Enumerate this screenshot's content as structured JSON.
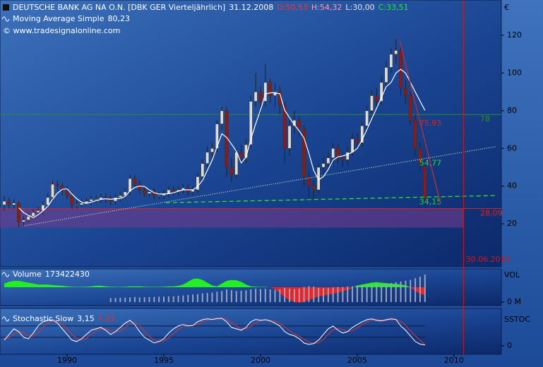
{
  "chart_data": [
    {
      "type": "candlestick",
      "title": "DEUTSCHE BANK AG NA O.N. [DBK GER  Vierteljährlich]",
      "date": "31.12.2008",
      "ohlc_labels": [
        "O:50,53",
        "H:54,32",
        "L:30,00",
        "C:33,51"
      ],
      "credit": "© www.tradesignalonline.com",
      "y_label": "€",
      "x": [
        1986.75,
        1987,
        1987.25,
        1987.5,
        1987.75,
        1988,
        1988.25,
        1988.5,
        1988.75,
        1989,
        1989.25,
        1989.5,
        1989.75,
        1990,
        1990.25,
        1990.5,
        1990.75,
        1991,
        1991.25,
        1991.5,
        1991.75,
        1992,
        1992.25,
        1992.5,
        1992.75,
        1993,
        1993.25,
        1993.5,
        1993.75,
        1994,
        1994.25,
        1994.5,
        1994.75,
        1995,
        1995.25,
        1995.5,
        1995.75,
        1996,
        1996.25,
        1996.5,
        1996.75,
        1997,
        1997.25,
        1997.5,
        1997.75,
        1998,
        1998.25,
        1998.5,
        1998.75,
        1999,
        1999.25,
        1999.5,
        1999.75,
        2000,
        2000.25,
        2000.5,
        2000.75,
        2001,
        2001.25,
        2001.5,
        2001.75,
        2002,
        2002.25,
        2002.5,
        2002.75,
        2003,
        2003.25,
        2003.5,
        2003.75,
        2004,
        2004.25,
        2004.5,
        2004.75,
        2005,
        2005.25,
        2005.5,
        2005.75,
        2006,
        2006.25,
        2006.5,
        2006.75,
        2007,
        2007.25,
        2007.5,
        2007.75,
        2008,
        2008.25,
        2008.5
      ],
      "open": [
        30,
        32,
        30,
        31,
        21,
        22,
        24,
        26,
        27,
        30,
        34,
        41,
        40,
        38,
        35,
        30,
        30,
        31,
        32,
        33,
        33,
        34,
        33,
        32,
        34,
        35,
        37,
        44,
        41,
        38,
        36,
        37,
        35,
        35,
        36,
        38,
        37,
        38,
        39,
        37,
        38,
        45,
        52,
        58,
        60,
        73,
        80,
        50,
        46,
        58,
        55,
        62,
        85,
        90,
        85,
        95,
        88,
        90,
        83,
        60,
        72,
        75,
        70,
        45,
        40,
        38,
        50,
        52,
        55,
        60,
        55,
        54,
        58,
        65,
        63,
        72,
        80,
        88,
        85,
        95,
        103,
        110,
        112,
        92,
        88,
        75,
        60,
        50.53
      ],
      "high": [
        35,
        34,
        33,
        32,
        24,
        26,
        28,
        29,
        32,
        36,
        43,
        43,
        42,
        40,
        37,
        33,
        33,
        34,
        35,
        35,
        36,
        36,
        35,
        36,
        37,
        39,
        46,
        46,
        43,
        40,
        39,
        39,
        37,
        38,
        40,
        40,
        40,
        41,
        41,
        40,
        47,
        54,
        61,
        63,
        75,
        82,
        82,
        55,
        60,
        62,
        65,
        88,
        100,
        93,
        105,
        97,
        95,
        93,
        85,
        75,
        80,
        77,
        72,
        48,
        43,
        52,
        55,
        58,
        63,
        62,
        58,
        61,
        68,
        68,
        74,
        83,
        91,
        92,
        98,
        106,
        113,
        118,
        114,
        96,
        90,
        78,
        63,
        54.32
      ],
      "low": [
        27,
        28,
        28,
        18,
        19,
        21,
        23,
        24,
        25,
        28,
        32,
        37,
        35,
        33,
        28,
        28,
        29,
        30,
        30,
        31,
        31,
        31,
        30,
        30,
        32,
        33,
        35,
        39,
        36,
        34,
        34,
        33,
        33,
        33,
        34,
        35,
        35,
        36,
        35,
        35,
        36,
        43,
        50,
        55,
        58,
        70,
        45,
        42,
        44,
        52,
        52,
        60,
        82,
        78,
        82,
        84,
        82,
        78,
        52,
        56,
        68,
        66,
        40,
        32,
        33,
        36,
        47,
        50,
        52,
        52,
        50,
        51,
        56,
        60,
        61,
        70,
        78,
        82,
        83,
        92,
        100,
        105,
        88,
        84,
        72,
        56,
        48,
        30
      ],
      "close": [
        32,
        30,
        31,
        21,
        22,
        24,
        26,
        27,
        30,
        34,
        41,
        40,
        38,
        35,
        30,
        30,
        31,
        32,
        33,
        33,
        34,
        33,
        32,
        34,
        35,
        37,
        44,
        41,
        38,
        36,
        37,
        35,
        35,
        36,
        38,
        37,
        38,
        39,
        37,
        38,
        45,
        52,
        58,
        60,
        73,
        80,
        50,
        46,
        58,
        55,
        62,
        85,
        90,
        85,
        95,
        88,
        90,
        83,
        60,
        72,
        75,
        70,
        45,
        40,
        38,
        50,
        52,
        55,
        60,
        55,
        54,
        58,
        65,
        63,
        72,
        80,
        88,
        85,
        95,
        103,
        110,
        112,
        92,
        88,
        75,
        60,
        52,
        33.51
      ],
      "up_color": "#dcdcdc",
      "down_color": "#8b1a1a",
      "series": [
        {
          "name": "Moving Average Simple",
          "value_label": "80,23",
          "color": "#ffffff",
          "values": [
            null,
            null,
            null,
            28.5,
            26,
            24.5,
            23.3,
            24.8,
            26.8,
            29.3,
            33,
            36.3,
            38.3,
            38.5,
            35.8,
            33.3,
            31.5,
            30.8,
            31.5,
            32.3,
            33,
            33.3,
            33,
            33.3,
            33.5,
            34.5,
            37.5,
            39.3,
            40,
            39.8,
            38,
            36.5,
            35.8,
            35.8,
            36,
            36.5,
            37.3,
            38,
            38,
            38,
            39.8,
            43,
            48.3,
            53.8,
            60.8,
            67.8,
            65.8,
            62.3,
            58.5,
            52.3,
            55.3,
            65,
            73,
            80.5,
            88.8,
            89.5,
            89.5,
            89,
            80.3,
            76.3,
            72.5,
            69.3,
            65.5,
            57.5,
            48.3,
            43.3,
            45,
            48.8,
            53.8,
            55.5,
            56,
            56.8,
            58,
            60,
            64.5,
            70,
            75.8,
            81.3,
            87,
            92.8,
            95,
            100,
            102,
            100,
            95,
            90,
            85,
            80.23
          ]
        }
      ],
      "xlim": [
        1986.53,
        2012.45
      ],
      "ylim": [
        -2.8,
        138
      ],
      "yticks": [
        20,
        40,
        60,
        80,
        100,
        120
      ],
      "hlines": [
        {
          "value": 78,
          "label": "78",
          "color": "#2e8b2e"
        },
        {
          "value": 28.09,
          "label": "28,09",
          "color": "#e02020"
        }
      ],
      "trendlines": [
        {
          "x": [
            1987.8,
            2012.2
          ],
          "y": [
            19,
            61
          ],
          "value": 54.77,
          "label": "54,77",
          "color": "#c8d8c8",
          "dash": "1 2",
          "label_color": "#22dd22"
        },
        {
          "x": [
            1995.1,
            2012.2
          ],
          "y": [
            31.2,
            35
          ],
          "value": 34.15,
          "label": "34,15",
          "color": "#22ee22",
          "dash": "6 4",
          "label_color": "#22dd22"
        },
        {
          "x": [
            2007.2,
            2009.3
          ],
          "y": [
            117,
            31
          ],
          "value": 75.93,
          "label": "75,93",
          "color": "#c03030",
          "dash": "none",
          "label_color": "#e02020"
        }
      ],
      "zone": {
        "y": [
          18,
          28.09
        ],
        "color": "#7a3a8a"
      },
      "vline": {
        "x": 2010.5,
        "label": "30.06.2010",
        "color": "#d01818"
      }
    },
    {
      "type": "bar",
      "y_label": "VOL",
      "x": [
        1986.75,
        1987,
        1987.25,
        1987.5,
        1987.75,
        1988,
        1988.25,
        1988.5,
        1988.75,
        1989,
        1989.25,
        1989.5,
        1989.75,
        1990,
        1990.25,
        1990.5,
        1990.75,
        1991,
        1991.25,
        1991.5,
        1991.75,
        1992,
        1992.25,
        1992.5,
        1992.75,
        1993,
        1993.25,
        1993.5,
        1993.75,
        1994,
        1994.25,
        1994.5,
        1994.75,
        1995,
        1995.25,
        1995.5,
        1995.75,
        1996,
        1996.25,
        1996.5,
        1996.75,
        1997,
        1997.25,
        1997.5,
        1997.75,
        1998,
        1998.25,
        1998.5,
        1998.75,
        1999,
        1999.25,
        1999.5,
        1999.75,
        2000,
        2000.25,
        2000.5,
        2000.75,
        2001,
        2001.25,
        2001.5,
        2001.75,
        2002,
        2002.25,
        2002.5,
        2002.75,
        2003,
        2003.25,
        2003.5,
        2003.75,
        2004,
        2004.25,
        2004.5,
        2004.75,
        2005,
        2005.25,
        2005.5,
        2005.75,
        2006,
        2006.25,
        2006.5,
        2006.75,
        2007,
        2007.25,
        2007.5,
        2007.75,
        2008,
        2008.25,
        2008.5
      ],
      "series": [
        {
          "name": "Volume",
          "color": "#9aa4bc",
          "values": [
            null,
            null,
            null,
            null,
            null,
            null,
            null,
            null,
            null,
            null,
            null,
            null,
            null,
            null,
            null,
            null,
            null,
            null,
            null,
            null,
            null,
            null,
            25000000,
            26000000,
            27000000,
            28000000,
            30000000,
            32000000,
            30000000,
            31000000,
            32000000,
            33000000,
            34000000,
            35000000,
            36000000,
            38000000,
            40000000,
            42000000,
            45000000,
            48000000,
            50000000,
            55000000,
            58000000,
            60000000,
            65000000,
            70000000,
            80000000,
            75000000,
            70000000,
            72000000,
            75000000,
            80000000,
            85000000,
            82000000,
            84000000,
            80000000,
            78000000,
            80000000,
            90000000,
            85000000,
            82000000,
            85000000,
            95000000,
            100000000,
            98000000,
            90000000,
            88000000,
            90000000,
            92000000,
            95000000,
            95000000,
            98000000,
            100000000,
            102000000,
            105000000,
            108000000,
            110000000,
            112000000,
            115000000,
            118000000,
            120000000,
            125000000,
            130000000,
            135000000,
            140000000,
            150000000,
            160000000,
            173422430
          ]
        }
      ],
      "oscillator": {
        "up_color": "#22ee22",
        "down_color": "#ee2222",
        "values": [
          20,
          30,
          35,
          35,
          30,
          25,
          20,
          15,
          15,
          15,
          12,
          10,
          8,
          5,
          3,
          2,
          2,
          3,
          5,
          8,
          8,
          5,
          3,
          2,
          2,
          3,
          5,
          5,
          5,
          3,
          2,
          2,
          2,
          3,
          5,
          5,
          8,
          15,
          30,
          45,
          48,
          40,
          25,
          10,
          5,
          20,
          35,
          40,
          38,
          30,
          15,
          5,
          3,
          2,
          2,
          0,
          -10,
          -30,
          -55,
          -70,
          -80,
          -84,
          -80,
          -70,
          -60,
          -50,
          -45,
          -40,
          -35,
          -30,
          -22,
          -15,
          -5,
          10,
          15,
          20,
          25,
          28,
          25,
          22,
          20,
          18,
          15,
          10,
          0,
          -20,
          -35,
          -44
        ]
      },
      "xlim": [
        1986.53,
        2012.45
      ],
      "ylim": [
        -22000000,
        209000000
      ],
      "y2lim": [
        -100,
        100
      ],
      "yticks": [
        {
          "value": 0,
          "label": "0 M"
        }
      ]
    },
    {
      "type": "line",
      "y_label": "SSTOC",
      "x": [
        1986.75,
        1987,
        1987.25,
        1987.5,
        1987.75,
        1988,
        1988.25,
        1988.5,
        1988.75,
        1989,
        1989.25,
        1989.5,
        1989.75,
        1990,
        1990.25,
        1990.5,
        1990.75,
        1991,
        1991.25,
        1991.5,
        1991.75,
        1992,
        1992.25,
        1992.5,
        1992.75,
        1993,
        1993.25,
        1993.5,
        1993.75,
        1994,
        1994.25,
        1994.5,
        1994.75,
        1995,
        1995.25,
        1995.5,
        1995.75,
        1996,
        1996.25,
        1996.5,
        1996.75,
        1997,
        1997.25,
        1997.5,
        1997.75,
        1998,
        1998.25,
        1998.5,
        1998.75,
        1999,
        1999.25,
        1999.5,
        1999.75,
        2000,
        2000.25,
        2000.5,
        2000.75,
        2001,
        2001.25,
        2001.5,
        2001.75,
        2002,
        2002.25,
        2002.5,
        2002.75,
        2003,
        2003.25,
        2003.5,
        2003.75,
        2004,
        2004.25,
        2004.5,
        2004.75,
        2005,
        2005.25,
        2005.5,
        2005.75,
        2006,
        2006.25,
        2006.5,
        2006.75,
        2007,
        2007.25,
        2007.5,
        2007.75,
        2008,
        2008.25,
        2008.5
      ],
      "series": [
        {
          "name": "Stochastic Slow",
          "value_label": "3,15",
          "color": "#ffffff",
          "values": [
            20,
            40,
            60,
            50,
            30,
            25,
            45,
            70,
            85,
            90,
            92,
            80,
            60,
            40,
            20,
            15,
            25,
            40,
            55,
            60,
            65,
            55,
            40,
            50,
            65,
            80,
            90,
            75,
            50,
            30,
            20,
            10,
            15,
            25,
            45,
            60,
            70,
            75,
            70,
            72,
            85,
            92,
            95,
            93,
            96,
            97,
            85,
            65,
            60,
            55,
            65,
            85,
            93,
            90,
            92,
            88,
            80,
            70,
            50,
            40,
            35,
            25,
            10,
            5,
            8,
            20,
            40,
            60,
            70,
            55,
            45,
            50,
            65,
            75,
            85,
            92,
            95,
            90,
            88,
            92,
            95,
            93,
            70,
            55,
            35,
            15,
            6,
            3.15
          ]
        },
        {
          "value_label": "4,25",
          "color": "#e03030",
          "values": [
            25,
            30,
            40,
            50,
            47,
            35,
            33,
            47,
            67,
            82,
            89,
            87,
            77,
            60,
            40,
            25,
            20,
            27,
            40,
            52,
            60,
            60,
            53,
            48,
            52,
            65,
            78,
            82,
            72,
            52,
            33,
            20,
            15,
            17,
            28,
            43,
            58,
            68,
            72,
            72,
            76,
            83,
            91,
            93,
            95,
            95,
            93,
            82,
            70,
            60,
            60,
            68,
            81,
            89,
            92,
            90,
            87,
            79,
            67,
            53,
            42,
            33,
            23,
            13,
            8,
            11,
            23,
            40,
            57,
            62,
            57,
            50,
            53,
            63,
            75,
            84,
            91,
            92,
            91,
            90,
            92,
            93,
            86,
            73,
            53,
            35,
            19,
            4.25
          ]
        }
      ],
      "levels": [
        30,
        70
      ],
      "xlim": [
        1986.53,
        2012.45
      ],
      "ylim": [
        -30,
        132
      ],
      "yticks": [
        0
      ],
      "xticks": [
        1990,
        1995,
        2000,
        2005,
        2010
      ]
    }
  ]
}
